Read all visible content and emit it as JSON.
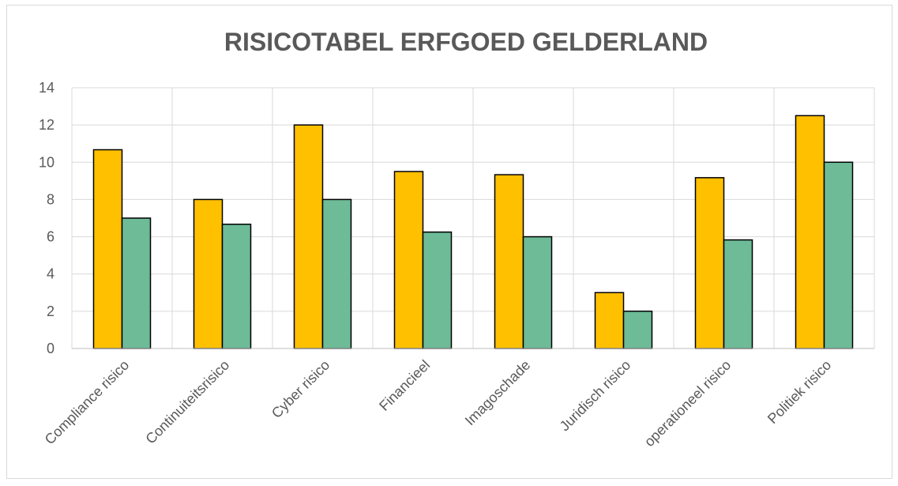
{
  "chart_data": {
    "type": "bar",
    "title": "RISICOTABEL ERFGOED GELDERLAND",
    "xlabel": "",
    "ylabel": "",
    "categories": [
      "Compliance risico",
      "Continuiteitsrisico",
      "Cyber risico",
      "Financieel",
      "Imagoschade",
      "Juridisch risico",
      "operationeel risico",
      "Politiek risico"
    ],
    "series": [
      {
        "color": "#ffc000",
        "values": [
          10.67,
          8,
          12,
          9.5,
          9.33,
          3,
          9.17,
          12.5
        ]
      },
      {
        "color": "#6dbb97",
        "values": [
          7,
          6.67,
          8,
          6.25,
          6,
          2,
          5.83,
          10
        ]
      }
    ],
    "ylim": [
      0,
      14
    ],
    "yticks": [
      0,
      2,
      4,
      6,
      8,
      10,
      12,
      14
    ],
    "grid": true,
    "legend": "none"
  }
}
